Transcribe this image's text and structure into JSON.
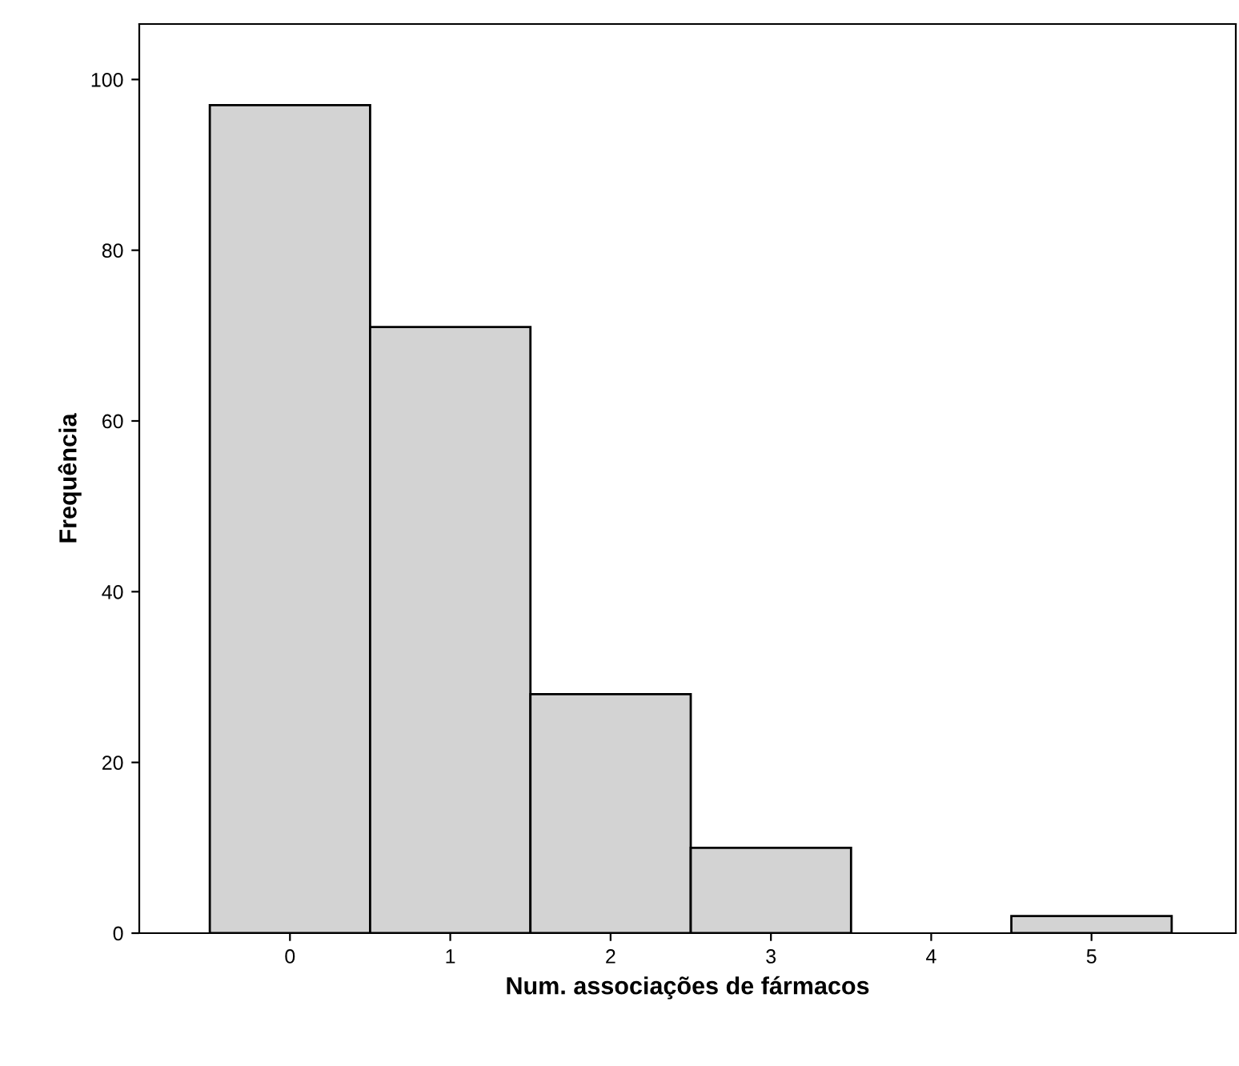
{
  "chart_data": {
    "type": "histogram",
    "xlabel": "Num. associações de fármacos",
    "ylabel": "Frequência",
    "bins": [
      -0.5,
      0.5,
      1.5,
      2.5,
      3.5,
      4.5,
      5.5
    ],
    "values": [
      97,
      71,
      28,
      10,
      0,
      2
    ],
    "color": "#d3d3d3",
    "xlim": [
      -0.94,
      5.9
    ],
    "xticks": [
      0,
      1,
      2,
      3,
      4,
      5
    ],
    "ylim": [
      0,
      106.5
    ],
    "yticks": [
      0,
      20,
      40,
      60,
      80,
      100
    ],
    "grid": false,
    "legend": false
  }
}
